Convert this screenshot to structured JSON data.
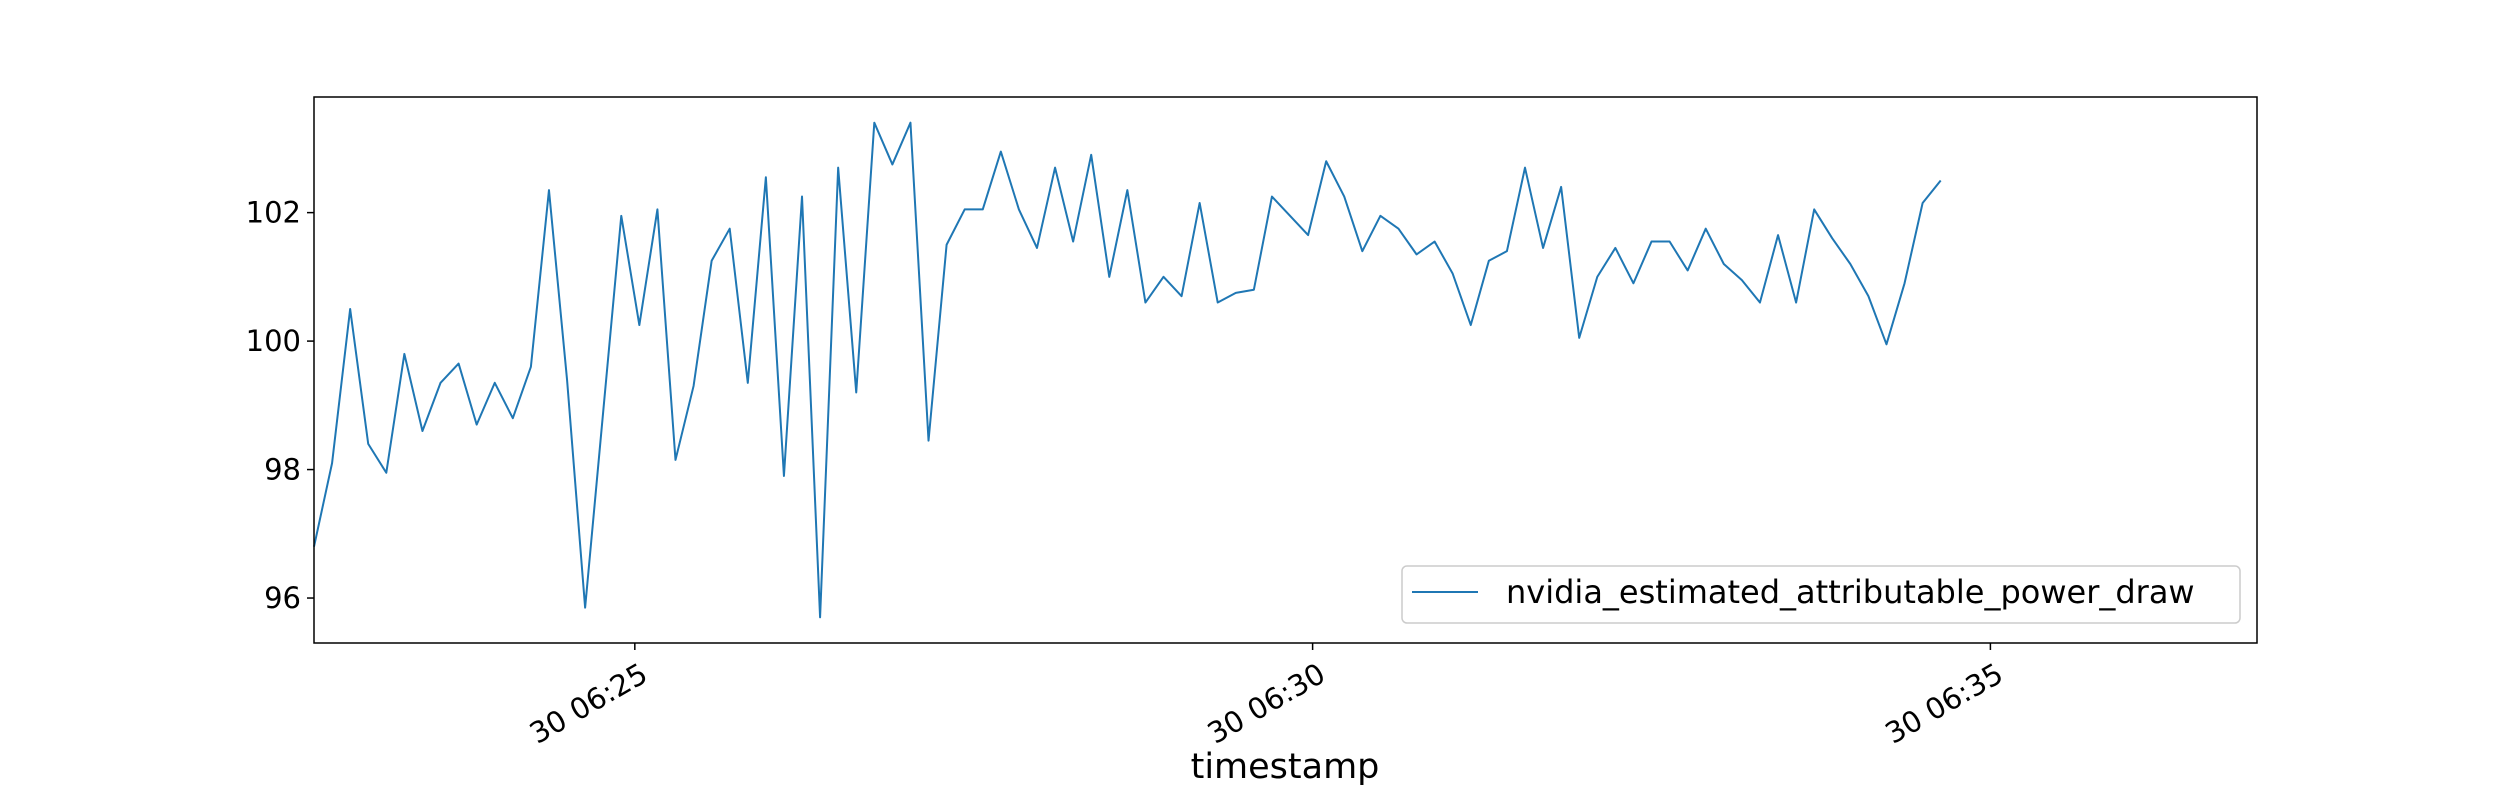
{
  "chart_data": {
    "type": "line",
    "title": "",
    "xlabel": "timestamp",
    "ylabel": "",
    "xlim": [
      "06:22:38",
      "06:36:58"
    ],
    "ylim": [
      95.3,
      103.8
    ],
    "x_ticks": [
      {
        "time": "06:25:00",
        "label": "30 06:25"
      },
      {
        "time": "06:30:00",
        "label": "30 06:30"
      },
      {
        "time": "06:35:00",
        "label": "30 06:35"
      }
    ],
    "y_ticks": [
      96,
      98,
      100,
      102
    ],
    "grid": false,
    "legend": {
      "position": "lower-right"
    },
    "series": [
      {
        "name": "nvidia_estimated_attributable_power_draw",
        "color": "#1f77b4",
        "start_time": "06:22:38",
        "interval_seconds": 8,
        "values": [
          96.8,
          98.1,
          100.5,
          98.4,
          97.95,
          99.8,
          98.6,
          99.35,
          99.65,
          98.7,
          99.35,
          98.8,
          99.6,
          102.35,
          99.4,
          95.85,
          98.9,
          101.95,
          100.25,
          102.05,
          98.15,
          99.3,
          101.25,
          101.75,
          99.35,
          102.55,
          97.9,
          102.25,
          95.7,
          102.7,
          99.2,
          103.4,
          102.75,
          103.4,
          98.45,
          101.5,
          102.05,
          102.05,
          102.95,
          102.05,
          101.45,
          102.7,
          101.55,
          102.9,
          101.0,
          102.35,
          100.6,
          101.0,
          100.7,
          102.15,
          100.6,
          100.75,
          100.8,
          102.25,
          101.95,
          101.65,
          102.8,
          102.25,
          101.4,
          101.95,
          101.75,
          101.35,
          101.55,
          101.05,
          100.25,
          101.25,
          101.4,
          102.7,
          101.45,
          102.4,
          100.05,
          101.0,
          101.45,
          100.9,
          101.55,
          101.55,
          101.1,
          101.75,
          101.2,
          100.95,
          100.6,
          101.65,
          100.6,
          102.05,
          101.6,
          101.2,
          100.7,
          99.95,
          100.9,
          102.15,
          102.5
        ]
      }
    ]
  }
}
